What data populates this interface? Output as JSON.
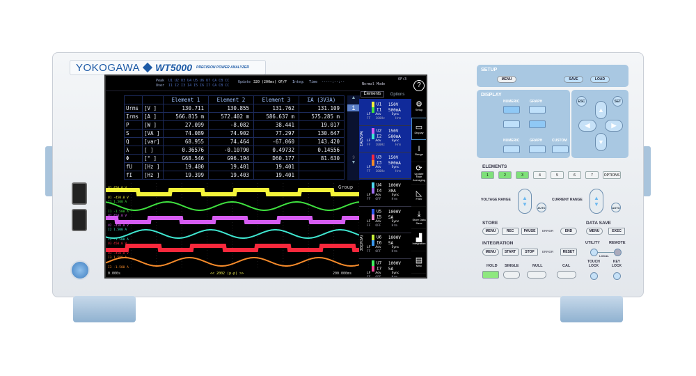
{
  "device": {
    "brand": "YOKOGAWA",
    "model": "WT5000",
    "tagline": "PRECISION POWER ANALYZER"
  },
  "screen": {
    "topbar": {
      "peak": "Peak",
      "over": "Over",
      "peak_channels": "U1 U2 U3 U4 U5 U6 U7 CA CB CC",
      "over_channels": "I1 I2 I3 I4 I5 I6 I7 CA CB CC",
      "update_label": "Update",
      "update_value": "320 (200ms) OF/F",
      "integ_label": "Integ:",
      "time_label": "Time",
      "time_value": "-----:--:--",
      "mode": "Normal Mode",
      "page": "OF:3"
    },
    "table": {
      "headers": [
        "",
        "",
        "Element 1",
        "Element 2",
        "Element 3",
        "ΣA (3V3A)"
      ],
      "rows": [
        [
          "Urms",
          "[V ]",
          "130.711",
          "130.855",
          "131.762",
          "131.109"
        ],
        [
          "Irms",
          "[A ]",
          "566.815 m",
          "572.402 m",
          "586.637 m",
          "575.285 m"
        ],
        [
          "P",
          "[W ]",
          "27.099",
          "-8.082",
          "38.441",
          "19.017"
        ],
        [
          "S",
          "[VA ]",
          "74.089",
          "74.902",
          "77.297",
          "130.647"
        ],
        [
          "Q",
          "[var]",
          "68.955",
          "74.464",
          "-67.060",
          "143.420"
        ],
        [
          "λ",
          "[ ]",
          "0.36576",
          "-0.10790",
          "0.49732",
          "0.14556"
        ],
        [
          "Φ",
          "[° ]",
          "G68.546",
          "G96.194",
          "D60.177",
          "81.630"
        ],
        [
          "fU",
          "[Hz ]",
          "19.400",
          "19.401",
          "19.401",
          ""
        ],
        [
          "fI",
          "[Hz ]",
          "19.399",
          "19.403",
          "19.401",
          ""
        ]
      ]
    },
    "scroll": {
      "page": "1",
      "last": "9"
    },
    "waveform": {
      "group_label": "Group",
      "start": "0.000s",
      "end": "200.000ms",
      "center": "<< 2002 (p-p) >>",
      "traces": [
        {
          "name": "U1",
          "top": "450.0 V",
          "bottom": "-450.0 V",
          "color": "#f4f43a",
          "shape": "square",
          "phase": 0
        },
        {
          "name": "I1",
          "top": "1.500 A",
          "bottom": "-1.500 A",
          "color": "#3fe03f",
          "shape": "sine",
          "phase": 0.3
        },
        {
          "name": "U2",
          "top": "450.0 V",
          "bottom": "-450.0 V",
          "color": "#d65cf2",
          "shape": "square",
          "phase": 0.333
        },
        {
          "name": "I2",
          "top": "1.500 A",
          "bottom": "-1.500 A",
          "color": "#3fe6d0",
          "shape": "sine",
          "phase": 0.63
        },
        {
          "name": "U3",
          "top": "450.0 V",
          "bottom": "-450.0 V",
          "color": "#f7283c",
          "shape": "square",
          "phase": 0.667
        },
        {
          "name": "I3",
          "top": "1.500 A",
          "bottom": "-1.500 A",
          "color": "#f58a2a",
          "shape": "sine",
          "phase": 0.96
        }
      ]
    },
    "elements_panel": {
      "tabs": [
        "Elements",
        "Options"
      ],
      "group1_label": "ΣA(3V3A)",
      "group2_label": "ΣB(3V3A)",
      "items": [
        {
          "u": "U1",
          "ur": "150V",
          "i": "I1",
          "ir": "500mA",
          "uc": "#f4f43a",
          "ic": "#3fe03f",
          "lf": "Adv",
          "ff": "100Hz",
          "sync": "Sync",
          "hrm": "Hrm"
        },
        {
          "u": "U2",
          "ur": "150V",
          "i": "I2",
          "ir": "500mA",
          "uc": "#d65cf2",
          "ic": "#3fe6d0",
          "lf": "Adv",
          "ff": "100Hz",
          "sync": "Sync",
          "hrm": "Hrm"
        },
        {
          "u": "U3",
          "ur": "150V",
          "i": "I3",
          "ir": "500mA",
          "uc": "#f7283c",
          "ic": "#f58a2a",
          "lf": "Adv",
          "ff": "100Hz",
          "sync": "Sync",
          "hrm": "Hrm"
        },
        {
          "u": "U4",
          "ur": "1000V",
          "i": "I4",
          "ir": "30A",
          "uc": "#4fd8f0",
          "ic": "#a070f0",
          "lf": "Adv",
          "ff": "OFF",
          "sync": "Sync",
          "hrm": "Hrm"
        },
        {
          "u": "U5",
          "ur": "1000V",
          "i": "I5",
          "ir": "5A",
          "uc": "#2f58f0",
          "ic": "#f08ad8",
          "lf": "Adv",
          "ff": "OFF",
          "sync": "Sync",
          "hrm": "Hrm"
        },
        {
          "u": "U6",
          "ur": "1000V",
          "i": "I6",
          "ir": "5A",
          "uc": "#c8f03a",
          "ic": "#3a9af0",
          "lf": "Adv",
          "ff": "OFF",
          "sync": "Sync",
          "hrm": "Hrm"
        },
        {
          "u": "U7",
          "ur": "1000V",
          "i": "I7",
          "ir": "5A",
          "uc": "#3ff060",
          "ic": "#f04a9a",
          "lf": "Adv",
          "ff": "OFF",
          "sync": "Sync",
          "hrm": "Hrm"
        }
      ]
    },
    "softkeys": [
      {
        "label": "Setup",
        "icon": "gear-icon",
        "glyph": "⚙"
      },
      {
        "label": "Display",
        "icon": "display-icon",
        "glyph": "▭"
      },
      {
        "label": "Range",
        "icon": "range-icon",
        "glyph": "I"
      },
      {
        "label": "Update Rate Averaging",
        "icon": "refresh-icon",
        "glyph": "⟳"
      },
      {
        "label": "Filter",
        "icon": "filter-icon",
        "glyph": "◺"
      },
      {
        "label": "Store Data Save",
        "icon": "download-icon",
        "glyph": "⤓"
      },
      {
        "label": "Integration",
        "icon": "chart-icon",
        "glyph": "▟"
      },
      {
        "label": "Misc",
        "icon": "toolbox-icon",
        "glyph": "▤"
      }
    ],
    "help_glyph": "?"
  },
  "panel": {
    "setup": {
      "title": "SETUP",
      "menu": "MENU",
      "save": "SAVE",
      "load": "LOAD"
    },
    "display": {
      "title": "DISPLAY",
      "numeric": "NUMERIC",
      "graph": "GRAPH",
      "custom": "CUSTOM"
    },
    "nav": {
      "esc": "ESC",
      "set": "SET",
      "up": "▲",
      "down": "▼",
      "left": "◀",
      "right": "▶"
    },
    "elements": {
      "title": "ELEMENTS",
      "buttons": [
        "1",
        "2",
        "3",
        "4",
        "5",
        "6",
        "7",
        "OPTIONS"
      ],
      "active": [
        "1",
        "2",
        "3"
      ],
      "active_color": "#7fe07a"
    },
    "voltage_range": "VOLTAGE RANGE",
    "current_range": "CURRENT RANGE",
    "auto": "AUTO",
    "store": {
      "title": "STORE",
      "menu": "MENU",
      "rec": "REC",
      "pause": "PAUSE",
      "error": "ERROR",
      "end": "END"
    },
    "data_save": {
      "title": "DATA SAVE",
      "menu": "MENU",
      "exec": "EXEC"
    },
    "integration": {
      "title": "INTEGRATION",
      "menu": "MENU",
      "start": "START",
      "stop": "STOP",
      "error": "ERROR",
      "reset": "RESET"
    },
    "utility": "UTILITY",
    "remote": "REMOTE",
    "local": "LOCAL",
    "hold": "HOLD",
    "single": "SINGLE",
    "null": "NULL",
    "cal": "CAL",
    "touch_lock": "TOUCH LOCK",
    "key_lock": "KEY LOCK"
  }
}
